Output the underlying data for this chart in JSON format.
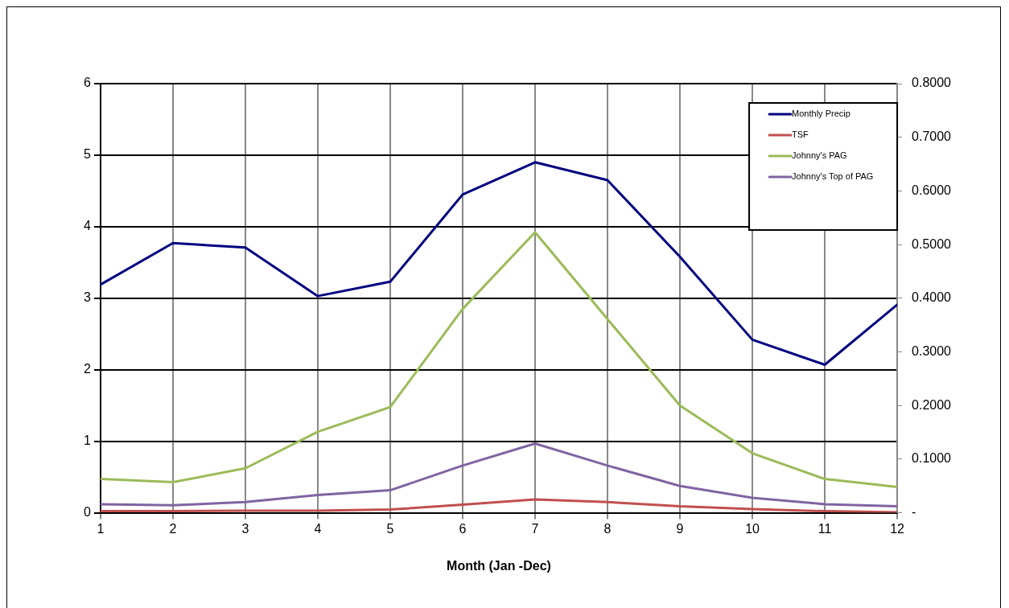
{
  "chart_data": {
    "type": "line",
    "xlabel": "Month (Jan -Dec)",
    "x": [
      1,
      2,
      3,
      4,
      5,
      6,
      7,
      8,
      9,
      10,
      11,
      12
    ],
    "xlim": [
      1,
      12
    ],
    "xticks": [
      1,
      2,
      3,
      4,
      5,
      6,
      7,
      8,
      9,
      10,
      11,
      12
    ],
    "ylim": [
      0,
      6
    ],
    "yticks": [
      0,
      1,
      2,
      3,
      4,
      5,
      6
    ],
    "y2lim": [
      0,
      0.8
    ],
    "y2ticks": [
      {
        "value": 0,
        "label": "-"
      },
      {
        "value": 0.1,
        "label": "0.1000"
      },
      {
        "value": 0.2,
        "label": "0.2000"
      },
      {
        "value": 0.3,
        "label": "0.3000"
      },
      {
        "value": 0.4,
        "label": "0.4000"
      },
      {
        "value": 0.5,
        "label": "0.5000"
      },
      {
        "value": 0.6,
        "label": "0.6000"
      },
      {
        "value": 0.7,
        "label": "0.7000"
      },
      {
        "value": 0.8,
        "label": "0.8000"
      }
    ],
    "series": [
      {
        "name": "Monthly Precip",
        "color": "#000080",
        "values": [
          3.19,
          3.77,
          3.71,
          3.03,
          3.23,
          4.45,
          4.9,
          4.65,
          3.58,
          2.42,
          2.07,
          2.91
        ]
      },
      {
        "name": "TSF",
        "color": "#c0504d",
        "axis": "y2",
        "values": [
          0.003,
          0.003,
          0.004,
          0.004,
          0.006,
          0.015,
          0.025,
          0.02,
          0.012,
          0.007,
          0.003,
          0.001
        ]
      },
      {
        "name": "Johnny's PAG",
        "color": "#9bbb59",
        "axis": "y2",
        "values": [
          0.063,
          0.057,
          0.083,
          0.151,
          0.197,
          0.38,
          0.523,
          0.361,
          0.2,
          0.111,
          0.063,
          0.048
        ]
      },
      {
        "name": "Johnny's Top of PAG",
        "color": "#8064a2",
        "axis": "y2",
        "values": [
          0.016,
          0.014,
          0.02,
          0.033,
          0.042,
          0.088,
          0.129,
          0.088,
          0.05,
          0.028,
          0.016,
          0.012
        ]
      }
    ],
    "grid": true,
    "legend": "top right",
    "marker": "none",
    "line_style": "solid"
  }
}
